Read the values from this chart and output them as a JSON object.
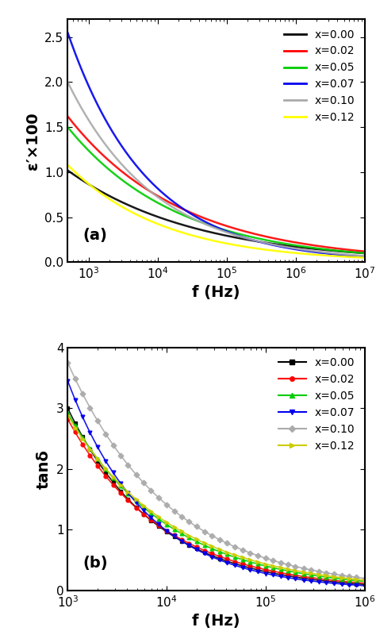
{
  "panel_a": {
    "xlabel": "f (Hz)",
    "ylabel": "ε′×100",
    "label": "(a)",
    "xmin": 500.0,
    "xmax": 10000000.0,
    "ymin": 0.0,
    "ymax": 2.7,
    "yticks": [
      0.0,
      0.5,
      1.0,
      1.5,
      2.0,
      2.5
    ],
    "series": [
      {
        "x_start": 500.0,
        "x_end": 10000000.0,
        "y_start": 1.02,
        "y_end": 0.1,
        "color": "#000000",
        "label": "x=0.00",
        "alpha": 0.9
      },
      {
        "x_start": 500.0,
        "x_end": 10000000.0,
        "y_start": 1.62,
        "y_end": 0.12,
        "color": "#ff0000",
        "label": "x=0.02",
        "alpha": 0.9
      },
      {
        "x_start": 500.0,
        "x_end": 10000000.0,
        "y_start": 1.5,
        "y_end": 0.1,
        "color": "#00cc00",
        "label": "x=0.05",
        "alpha": 0.9
      },
      {
        "x_start": 500.0,
        "x_end": 10000000.0,
        "y_start": 2.55,
        "y_end": 0.06,
        "color": "#0000ee",
        "label": "x=0.07",
        "alpha": 0.9
      },
      {
        "x_start": 500.0,
        "x_end": 10000000.0,
        "y_start": 2.0,
        "y_end": 0.07,
        "color": "#aaaaaa",
        "label": "x=0.10",
        "alpha": 0.9
      },
      {
        "x_start": 500.0,
        "x_end": 10000000.0,
        "y_start": 1.08,
        "y_end": 0.05,
        "color": "#ffff00",
        "label": "x=0.12",
        "alpha": 0.95
      }
    ]
  },
  "panel_b": {
    "xlabel": "f (Hz)",
    "ylabel": "tanδ",
    "label": "(b)",
    "xmin": 1000.0,
    "xmax": 1000000.0,
    "ymin": 0.0,
    "ymax": 4.0,
    "yticks": [
      0,
      1,
      2,
      3,
      4
    ],
    "series": [
      {
        "x_start": 1000.0,
        "x_end": 1000000.0,
        "y_start": 3.0,
        "y_end": 0.1,
        "color": "#000000",
        "label": "x=0.00",
        "marker": "s",
        "alpha": 0.9
      },
      {
        "x_start": 1000.0,
        "x_end": 1000000.0,
        "y_start": 2.82,
        "y_end": 0.12,
        "color": "#ff0000",
        "label": "x=0.02",
        "marker": "o",
        "alpha": 0.9
      },
      {
        "x_start": 1000.0,
        "x_end": 1000000.0,
        "y_start": 2.92,
        "y_end": 0.15,
        "color": "#00cc00",
        "label": "x=0.05",
        "marker": "^",
        "alpha": 0.9
      },
      {
        "x_start": 1000.0,
        "x_end": 1000000.0,
        "y_start": 3.45,
        "y_end": 0.08,
        "color": "#0000ee",
        "label": "x=0.07",
        "marker": "v",
        "alpha": 0.9
      },
      {
        "x_start": 1000.0,
        "x_end": 1000000.0,
        "y_start": 3.75,
        "y_end": 0.2,
        "color": "#aaaaaa",
        "label": "x=0.10",
        "marker": "D",
        "alpha": 0.9
      },
      {
        "x_start": 1000.0,
        "x_end": 1000000.0,
        "y_start": 2.88,
        "y_end": 0.17,
        "color": "#cccc00",
        "label": "x=0.12",
        "marker": ">",
        "alpha": 0.9
      }
    ]
  },
  "background_color": "#ffffff",
  "border_color": "#000000",
  "tick_fontsize": 11,
  "label_fontsize": 14,
  "legend_fontsize": 10
}
